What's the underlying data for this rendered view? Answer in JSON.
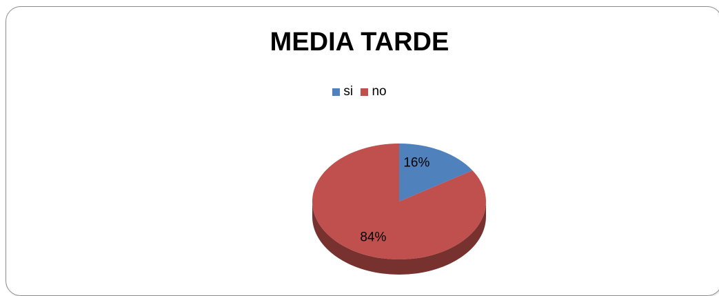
{
  "chart_data": {
    "type": "pie",
    "title": "MEDIA TARDE",
    "categories": [
      "si",
      "no"
    ],
    "values": [
      16,
      84
    ],
    "data_labels": [
      "16%",
      "84%"
    ],
    "colors": [
      "#4f81bd",
      "#c0504d"
    ],
    "legend_position": "top"
  }
}
